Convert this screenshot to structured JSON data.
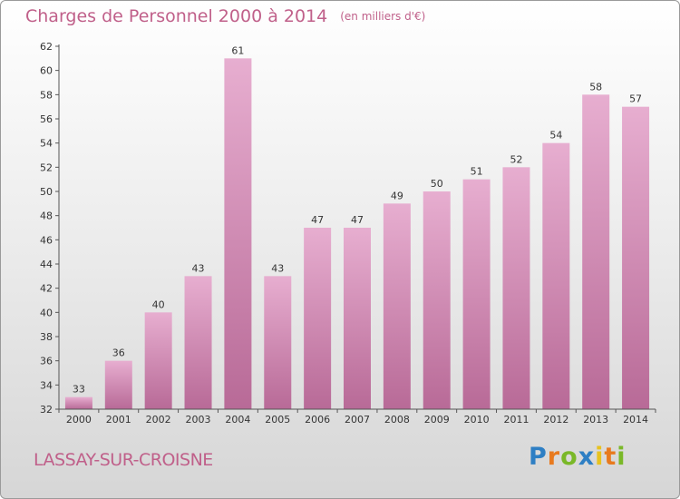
{
  "title": "Charges de Personnel 2000 à 2014",
  "unit": "(en milliers d'€)",
  "commune": "LASSAY-SUR-CROISNE",
  "logo": {
    "letters": [
      "P",
      "r",
      "o",
      "x",
      "i",
      "t",
      "i"
    ],
    "colors": [
      "#2e7fc4",
      "#e87a1e",
      "#7ab828",
      "#2e7fc4",
      "#e8c21e",
      "#e87a1e",
      "#7ab828"
    ]
  },
  "colors": {
    "bar": "#d98ab5",
    "bar_light": "#e7aed0",
    "bar_dark": "#b86a97",
    "accent": "#c0608a"
  },
  "chart_data": {
    "type": "bar",
    "categories": [
      "2000",
      "2001",
      "2002",
      "2003",
      "2004",
      "2005",
      "2006",
      "2007",
      "2008",
      "2009",
      "2010",
      "2011",
      "2012",
      "2013",
      "2014"
    ],
    "values": [
      33,
      36,
      40,
      43,
      61,
      43,
      47,
      47,
      49,
      50,
      51,
      52,
      54,
      58,
      57
    ],
    "title": "Charges de Personnel 2000 à 2014",
    "xlabel": "",
    "ylabel": "",
    "ylim": [
      32,
      62
    ],
    "yticks": [
      32,
      34,
      36,
      38,
      40,
      42,
      44,
      46,
      48,
      50,
      52,
      54,
      56,
      58,
      60,
      62
    ],
    "grid": false,
    "legend": "none"
  }
}
